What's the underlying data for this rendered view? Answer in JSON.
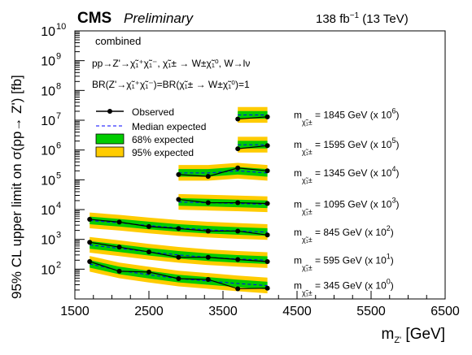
{
  "header": {
    "experiment": "CMS",
    "status": "Preliminary",
    "luminosity": "138 fb",
    "lumi_sup": "−1",
    "energy": " (13 TeV)"
  },
  "info": {
    "line1": "combined",
    "line2": "pp→Z'→χ̃₁⁺χ̃₁⁻, χ̃₁± → W±χ̃₁⁰, W→lν",
    "line3": "BR(Z'→χ̃₁⁺χ̃₁⁻)=BR(χ̃₁± → W±χ̃₁⁰)=1"
  },
  "chart_data": {
    "type": "line",
    "xlabel": "m",
    "xlabel_sub": "Z'",
    "xlabel_unit": " [GeV]",
    "ylabel": "95% CL upper limit on σ(pp→ Z') [fb]",
    "xlim": [
      1500,
      6500
    ],
    "ylim_log10": [
      1,
      10
    ],
    "y_scale": "log",
    "x_ticks": [
      "1500",
      "2500",
      "3500",
      "4500",
      "5500",
      "6500"
    ],
    "y_tick_exponents": [
      2,
      3,
      4,
      5,
      6,
      7,
      8,
      9,
      10
    ],
    "legend": {
      "placement": "top-left",
      "entries": [
        "Observed",
        "Median expected",
        "68% expected",
        "95% expected"
      ]
    },
    "colors": {
      "band95": "#ffcc00",
      "band68": "#00cc00",
      "expected": "#0000ff",
      "observed": "#000000"
    },
    "series": [
      {
        "label_prefix": "m",
        "label_sub": "χ̃₁±",
        "label_text": " = 345 GeV (x 10",
        "label_exp": "0",
        "x": [
          1700,
          2100,
          2500,
          2900,
          3300,
          3700,
          4100
        ],
        "observed": [
          180,
          85,
          80,
          48,
          45,
          22,
          23
        ],
        "expected": [
          150,
          90,
          65,
          48,
          40,
          33,
          28
        ]
      },
      {
        "label_prefix": "m",
        "label_sub": "χ̃₁±",
        "label_text": " = 595 GeV (x 10",
        "label_exp": "1",
        "x": [
          1700,
          2100,
          2500,
          2900,
          3300,
          3700,
          4100
        ],
        "observed": [
          800,
          550,
          380,
          250,
          250,
          210,
          180
        ],
        "expected": [
          650,
          500,
          380,
          300,
          250,
          220,
          200
        ]
      },
      {
        "label_prefix": "m",
        "label_sub": "χ̃₁±",
        "label_text": " = 845 GeV (x 10",
        "label_exp": "2",
        "x": [
          1700,
          2100,
          2500,
          2900,
          3300,
          3700,
          4100
        ],
        "observed": [
          4700,
          3800,
          2700,
          2300,
          1900,
          1900,
          1400
        ],
        "expected": [
          4300,
          3600,
          2900,
          2400,
          2100,
          1900,
          1750
        ]
      },
      {
        "label_prefix": "m",
        "label_sub": "χ̃₁±",
        "label_text": " = 1095 GeV (x 10",
        "label_exp": "3",
        "x": [
          2900,
          3300,
          3700,
          4100
        ],
        "observed": [
          22000,
          17000,
          17000,
          16000
        ],
        "expected": [
          18000,
          17000,
          16000,
          15000
        ]
      },
      {
        "label_prefix": "m",
        "label_sub": "χ̃₁±",
        "label_text": " = 1345 GeV (x 10",
        "label_exp": "4",
        "x": [
          2900,
          3300,
          3700,
          4100
        ],
        "observed": [
          150000,
          130000,
          250000,
          200000
        ],
        "expected": [
          170000,
          170000,
          200000,
          170000
        ]
      },
      {
        "label_prefix": "m",
        "label_sub": "χ̃₁±",
        "label_text": " = 1595 GeV (x 10",
        "label_exp": "5",
        "x": [
          3700,
          4100
        ],
        "observed": [
          1100000,
          1400000
        ],
        "expected": [
          1500000,
          1500000
        ]
      },
      {
        "label_prefix": "m",
        "label_sub": "χ̃₁±",
        "label_text": " = 1845 GeV (x 10",
        "label_exp": "6",
        "x": [
          3700,
          4100
        ],
        "observed": [
          11000000,
          13000000
        ],
        "expected": [
          15000000,
          15000000
        ]
      }
    ]
  }
}
